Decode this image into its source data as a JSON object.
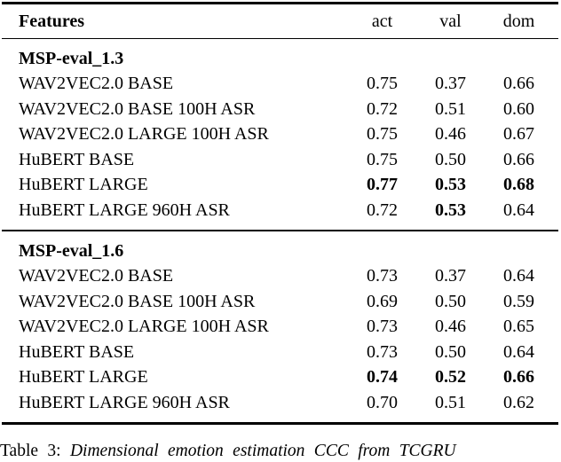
{
  "page": {
    "background": "#ffffff",
    "text_color": "#000000"
  },
  "table": {
    "header": {
      "features": "Features",
      "columns": [
        "act",
        "val",
        "dom"
      ]
    },
    "sections": [
      {
        "title": "MSP-eval_1.3",
        "rows": [
          {
            "label": "WAV2VEC2.0 BASE",
            "values": [
              "0.75",
              "0.37",
              "0.66"
            ],
            "bold": [
              false,
              false,
              false
            ]
          },
          {
            "label": "WAV2VEC2.0 BASE 100H ASR",
            "values": [
              "0.72",
              "0.51",
              "0.60"
            ],
            "bold": [
              false,
              false,
              false
            ]
          },
          {
            "label": "WAV2VEC2.0 LARGE 100H ASR",
            "values": [
              "0.75",
              "0.46",
              "0.67"
            ],
            "bold": [
              false,
              false,
              false
            ]
          },
          {
            "label": "HuBERT BASE",
            "values": [
              "0.75",
              "0.50",
              "0.66"
            ],
            "bold": [
              false,
              false,
              false
            ]
          },
          {
            "label": "HuBERT LARGE",
            "values": [
              "0.77",
              "0.53",
              "0.68"
            ],
            "bold": [
              true,
              true,
              true
            ]
          },
          {
            "label": "HuBERT LARGE 960H ASR",
            "values": [
              "0.72",
              "0.53",
              "0.64"
            ],
            "bold": [
              false,
              true,
              false
            ]
          }
        ]
      },
      {
        "title": "MSP-eval_1.6",
        "rows": [
          {
            "label": "WAV2VEC2.0 BASE",
            "values": [
              "0.73",
              "0.37",
              "0.64"
            ],
            "bold": [
              false,
              false,
              false
            ]
          },
          {
            "label": "WAV2VEC2.0 BASE 100H ASR",
            "values": [
              "0.69",
              "0.50",
              "0.59"
            ],
            "bold": [
              false,
              false,
              false
            ]
          },
          {
            "label": "WAV2VEC2.0 LARGE 100H ASR",
            "values": [
              "0.73",
              "0.46",
              "0.65"
            ],
            "bold": [
              false,
              false,
              false
            ]
          },
          {
            "label": "HuBERT BASE",
            "values": [
              "0.73",
              "0.50",
              "0.64"
            ],
            "bold": [
              false,
              false,
              false
            ]
          },
          {
            "label": "HuBERT LARGE",
            "values": [
              "0.74",
              "0.52",
              "0.66"
            ],
            "bold": [
              true,
              true,
              true
            ]
          },
          {
            "label": "HuBERT LARGE 960H ASR",
            "values": [
              "0.70",
              "0.51",
              "0.62"
            ],
            "bold": [
              false,
              false,
              false
            ]
          }
        ]
      }
    ]
  },
  "caption": {
    "label": "Table 3:",
    "text": "Dimensional emotion estimation CCC from TCGRU"
  }
}
